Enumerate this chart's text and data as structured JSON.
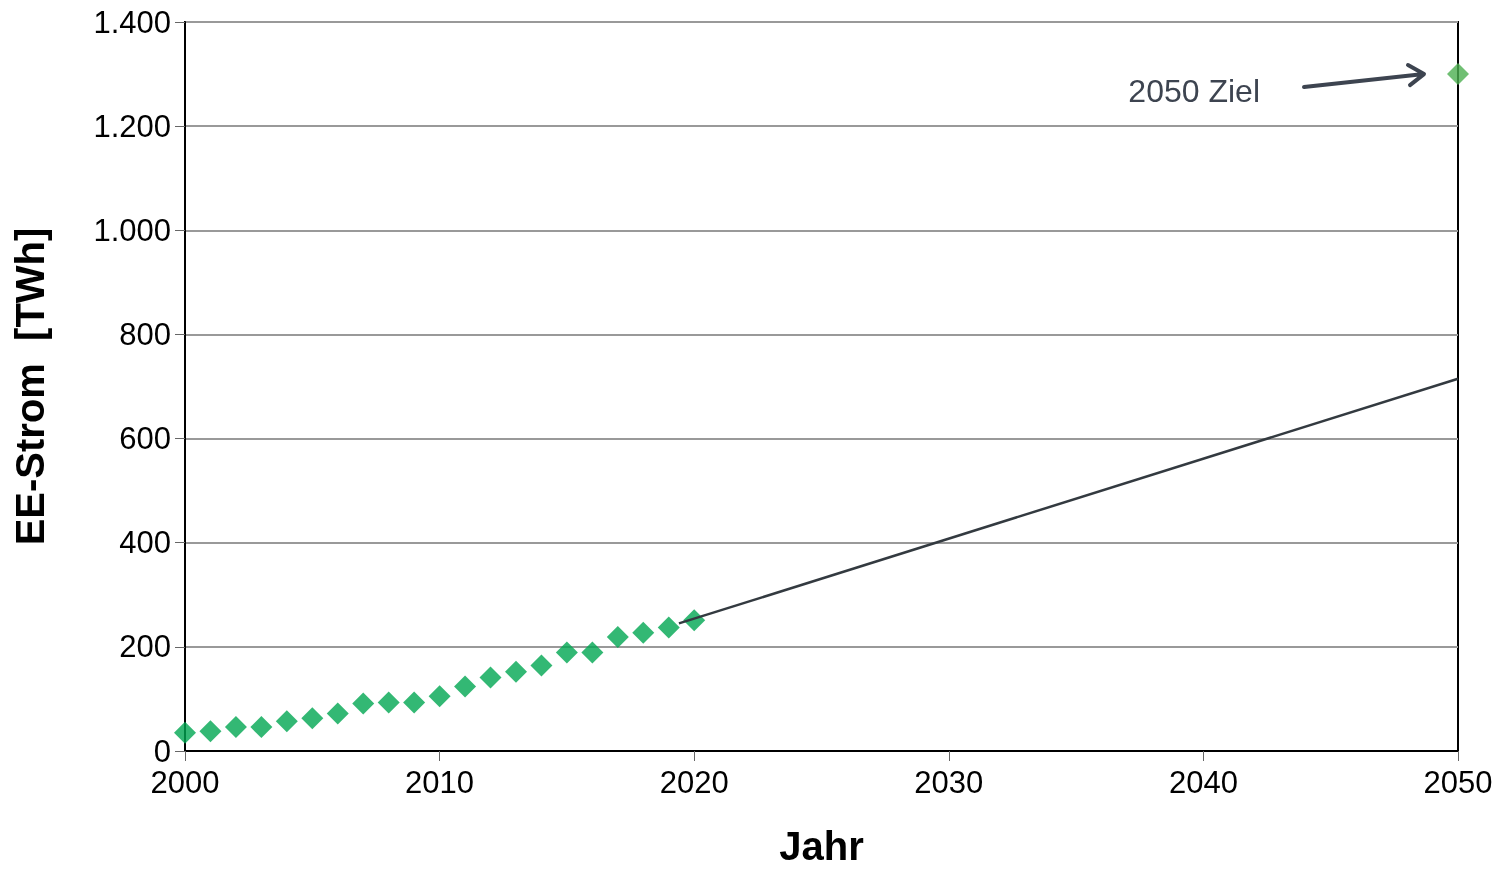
{
  "chart_data": {
    "type": "scatter",
    "xlabel": "Jahr",
    "ylabel": "EE-Strom  [TWh]",
    "marker": "diamond",
    "grid": "y",
    "xlim": [
      2000,
      2050
    ],
    "xticks": [
      2000,
      2010,
      2020,
      2030,
      2040,
      2050
    ],
    "ylim": [
      0,
      1400
    ],
    "yticks": [
      0,
      200,
      400,
      600,
      800,
      {
        "value": 1000,
        "label": "1.000"
      },
      {
        "value": 1200,
        "label": "1.200"
      },
      {
        "value": 1400,
        "label": "1.400"
      }
    ],
    "annotations": [
      "2050 Ziel"
    ],
    "series": [
      {
        "color": "#00a651",
        "x": [
          2000,
          2001,
          2002,
          2003,
          2004,
          2005,
          2006,
          2007,
          2008,
          2009,
          2010,
          2011,
          2012,
          2013,
          2014,
          2015,
          2016,
          2017,
          2018,
          2019,
          2020
        ],
        "values": [
          35,
          38,
          46,
          46,
          57,
          63,
          72,
          91,
          93,
          93,
          105,
          124,
          141,
          152,
          164,
          189,
          189,
          219,
          227,
          237,
          251
        ]
      },
      {
        "color": "#4caf50",
        "x": [
          2050
        ],
        "values": [
          1300
        ]
      },
      {
        "type": "line",
        "marker": "none",
        "color": "#333a40",
        "x": [
          2019.4,
          2050
        ],
        "values": [
          245,
          715
        ]
      }
    ]
  }
}
